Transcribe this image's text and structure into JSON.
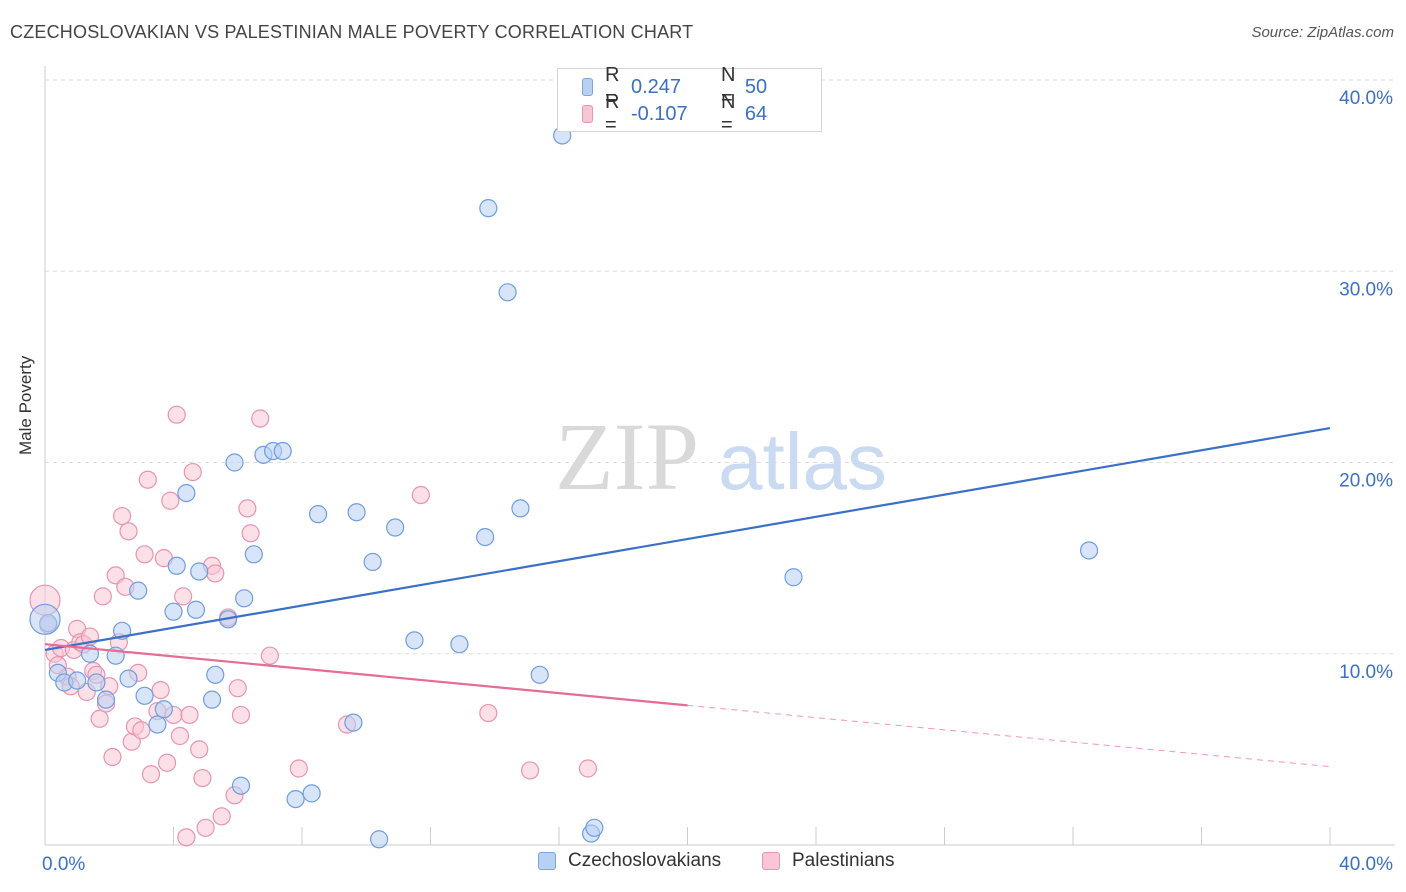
{
  "header": {
    "title": "CZECHOSLOVAKIAN VS PALESTINIAN MALE POVERTY CORRELATION CHART",
    "source": "Source: ZipAtlas.com"
  },
  "watermark": {
    "zip": "ZIP",
    "atlas": "atlas"
  },
  "legend": {
    "r_label": "R =",
    "n_label": "N =",
    "rows": [
      {
        "name": "Czechoslovakians",
        "r": "0.247",
        "n": "50",
        "fill": "#b8d0f2",
        "stroke": "#7aa6e0"
      },
      {
        "name": "Palestinians",
        "r": "-0.107",
        "n": "64",
        "fill": "#f9c6d6",
        "stroke": "#ec94b0"
      }
    ]
  },
  "chart_data": {
    "type": "scatter",
    "title": "CZECHOSLOVAKIAN VS PALESTINIAN MALE POVERTY CORRELATION CHART",
    "xlabel": "",
    "ylabel": "Male Poverty",
    "xlim": [
      0,
      40
    ],
    "ylim": [
      0,
      40
    ],
    "x_tick_labels": [
      "0.0%",
      "40.0%"
    ],
    "y_ticks": [
      10,
      20,
      30,
      40
    ],
    "y_tick_labels": [
      "10.0%",
      "20.0%",
      "30.0%",
      "40.0%"
    ],
    "grid": true,
    "legend_position": "top-center",
    "colors": {
      "blue": "#3a70c6",
      "pink": "#e66b96",
      "blue_fill": "#b8d0f2",
      "pink_fill": "#f9c6d6"
    },
    "series": [
      {
        "name": "Czechoslovakians",
        "color": "#3a70c6",
        "trend": {
          "x": [
            0,
            40
          ],
          "y": [
            10.2,
            21.8
          ],
          "dashed_from": null
        },
        "points": [
          [
            0.1,
            11.6
          ],
          [
            0.4,
            9.0
          ],
          [
            0.6,
            8.5
          ],
          [
            1.0,
            8.6
          ],
          [
            1.4,
            10.0
          ],
          [
            1.6,
            8.5
          ],
          [
            1.9,
            7.6
          ],
          [
            2.2,
            9.9
          ],
          [
            2.4,
            11.2
          ],
          [
            2.6,
            8.7
          ],
          [
            2.9,
            13.3
          ],
          [
            3.1,
            7.8
          ],
          [
            3.5,
            6.3
          ],
          [
            3.7,
            7.1
          ],
          [
            4.0,
            12.2
          ],
          [
            4.1,
            14.6
          ],
          [
            4.4,
            18.4
          ],
          [
            4.7,
            12.3
          ],
          [
            4.8,
            14.3
          ],
          [
            5.2,
            7.6
          ],
          [
            5.3,
            8.9
          ],
          [
            5.7,
            11.8
          ],
          [
            5.9,
            20.0
          ],
          [
            6.1,
            3.1
          ],
          [
            6.2,
            12.9
          ],
          [
            6.5,
            15.2
          ],
          [
            6.8,
            20.4
          ],
          [
            7.1,
            20.6
          ],
          [
            7.4,
            20.6
          ],
          [
            7.8,
            2.4
          ],
          [
            8.3,
            2.7
          ],
          [
            8.5,
            17.3
          ],
          [
            9.6,
            6.4
          ],
          [
            9.7,
            17.4
          ],
          [
            10.2,
            14.8
          ],
          [
            10.4,
            0.3
          ],
          [
            10.9,
            16.6
          ],
          [
            11.5,
            10.7
          ],
          [
            12.9,
            10.5
          ],
          [
            13.7,
            16.1
          ],
          [
            13.8,
            33.3
          ],
          [
            14.4,
            28.9
          ],
          [
            14.8,
            17.6
          ],
          [
            15.4,
            8.9
          ],
          [
            16.1,
            37.1
          ],
          [
            17.0,
            0.6
          ],
          [
            17.1,
            0.9
          ],
          [
            23.3,
            14.0
          ],
          [
            32.5,
            15.4
          ],
          [
            0.0,
            11.8
          ]
        ]
      },
      {
        "name": "Palestinians",
        "color": "#e66b96",
        "trend": {
          "x": [
            0,
            40
          ],
          "y": [
            10.5,
            4.1
          ],
          "dashed_from": 20
        },
        "points": [
          [
            0.0,
            12.8
          ],
          [
            0.1,
            11.5
          ],
          [
            0.3,
            10.0
          ],
          [
            0.4,
            9.4
          ],
          [
            0.5,
            10.3
          ],
          [
            0.7,
            8.8
          ],
          [
            0.8,
            8.3
          ],
          [
            0.9,
            10.2
          ],
          [
            1.0,
            11.3
          ],
          [
            1.1,
            10.6
          ],
          [
            1.2,
            10.5
          ],
          [
            1.3,
            8.0
          ],
          [
            1.4,
            10.9
          ],
          [
            1.5,
            9.1
          ],
          [
            1.6,
            8.9
          ],
          [
            1.7,
            6.6
          ],
          [
            1.8,
            13.0
          ],
          [
            1.9,
            7.4
          ],
          [
            2.0,
            8.3
          ],
          [
            2.1,
            4.6
          ],
          [
            2.2,
            14.1
          ],
          [
            2.3,
            10.6
          ],
          [
            2.4,
            17.2
          ],
          [
            2.5,
            13.5
          ],
          [
            2.6,
            16.4
          ],
          [
            2.7,
            5.4
          ],
          [
            2.8,
            6.2
          ],
          [
            2.9,
            9.0
          ],
          [
            3.0,
            6.0
          ],
          [
            3.1,
            15.2
          ],
          [
            3.2,
            19.1
          ],
          [
            3.3,
            3.7
          ],
          [
            3.5,
            7.0
          ],
          [
            3.6,
            8.1
          ],
          [
            3.7,
            15.0
          ],
          [
            3.8,
            4.3
          ],
          [
            3.9,
            18.0
          ],
          [
            4.0,
            6.8
          ],
          [
            4.1,
            22.5
          ],
          [
            4.2,
            5.7
          ],
          [
            4.3,
            13.0
          ],
          [
            4.4,
            0.4
          ],
          [
            4.5,
            6.8
          ],
          [
            4.6,
            19.5
          ],
          [
            4.8,
            5.0
          ],
          [
            4.9,
            3.5
          ],
          [
            5.0,
            0.9
          ],
          [
            5.2,
            14.6
          ],
          [
            5.3,
            14.2
          ],
          [
            5.5,
            1.5
          ],
          [
            5.7,
            11.9
          ],
          [
            5.9,
            2.6
          ],
          [
            6.0,
            8.2
          ],
          [
            6.1,
            6.8
          ],
          [
            6.3,
            17.6
          ],
          [
            6.4,
            16.3
          ],
          [
            6.7,
            22.3
          ],
          [
            7.0,
            9.9
          ],
          [
            7.9,
            4.0
          ],
          [
            11.7,
            18.3
          ],
          [
            13.8,
            6.9
          ],
          [
            15.1,
            3.9
          ],
          [
            16.9,
            4.0
          ],
          [
            9.4,
            6.3
          ]
        ]
      }
    ]
  },
  "bottom_legend": [
    {
      "name": "Czechoslovakians"
    },
    {
      "name": "Palestinians"
    }
  ]
}
